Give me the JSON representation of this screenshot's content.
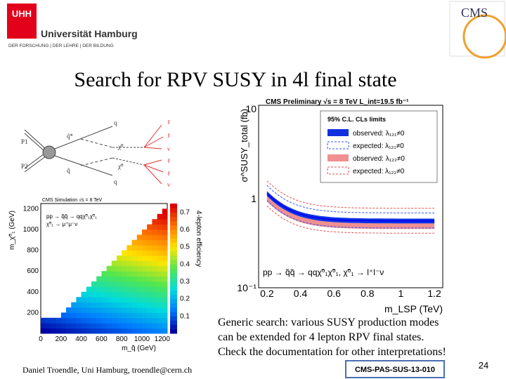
{
  "header": {
    "university": "Universität Hamburg",
    "motto": "DER FORSCHUNG | DER LEHRE | DER BILDUNG",
    "logo_text": "UHH",
    "cms_logo": "CMS"
  },
  "title": "Search for RPV SUSY in 4l final state",
  "diagram": {
    "labels": [
      "P1",
      "P2",
      "q",
      "q̃*",
      "χ̃⁰",
      "q̃",
      "χ̃⁰",
      "q",
      "ℓ",
      "ℓ",
      "ν",
      "ℓ",
      "ℓ",
      "ν"
    ]
  },
  "efficiency_plot": {
    "header": "CMS Simulation   √s = 8 TeV",
    "process": "pp → q̃q̃ → qqχ̃⁰₁χ̃⁰₁",
    "decay": "χ̃⁰₁ → μ⁺μ⁻ν",
    "xlabel": "m_q̃ (GeV)",
    "ylabel": "m_χ̃⁰₁ (GeV)",
    "zlabel": "4-lepton efficiency",
    "xticks": [
      "0",
      "200",
      "400",
      "600",
      "800",
      "1000",
      "1200"
    ],
    "yticks": [
      "200",
      "400",
      "600",
      "800",
      "1000",
      "1200"
    ],
    "zticks": [
      "0.1",
      "0.2",
      "0.3",
      "0.4",
      "0.5",
      "0.6",
      "0.7"
    ]
  },
  "limit_plot": {
    "header": "CMS Preliminary   √s = 8 TeV   L_int=19.5 fb⁻¹",
    "legend_title": "95% C.L. CLs limits",
    "legend": [
      "observed: λ₁₂₁≠0",
      "expected: λ₁₂₁≠0",
      "observed: λ₁₂₂≠0",
      "expected: λ₁₂₂≠0"
    ],
    "process": "pp → q̃q̃ → qqχ̃⁰₁χ̃⁰₁, χ̃⁰₁ → l⁺l⁻ν",
    "xlabel": "m_LSP (TeV)",
    "ylabel": "σ^SUSY_total (fb)",
    "xticks": [
      "0.2",
      "0.4",
      "0.6",
      "0.8",
      "1",
      "1.2"
    ],
    "yticks": [
      "10",
      "1",
      "10⁻¹"
    ]
  },
  "body": [
    "Generic search: various SUSY production modes",
    "can be extended for 4 lepton RPV final states.",
    "Check the documentation for other interpretations!"
  ],
  "footer": {
    "author": "Daniel Troendle, Uni Hamburg, troendle@cern.ch",
    "reference": "CMS-PAS-SUS-13-010",
    "page": "24"
  }
}
